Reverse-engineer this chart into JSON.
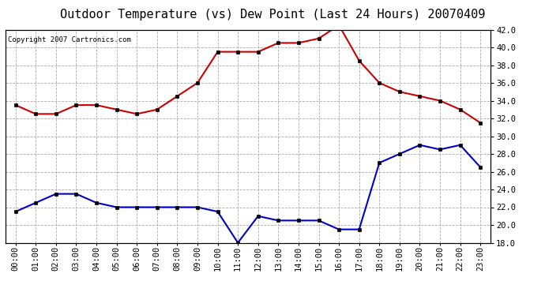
{
  "title": "Outdoor Temperature (vs) Dew Point (Last 24 Hours) 20070409",
  "copyright": "Copyright 2007 Cartronics.com",
  "hours": [
    "00:00",
    "01:00",
    "02:00",
    "03:00",
    "04:00",
    "05:00",
    "06:00",
    "07:00",
    "08:00",
    "09:00",
    "10:00",
    "11:00",
    "12:00",
    "13:00",
    "14:00",
    "15:00",
    "16:00",
    "17:00",
    "18:00",
    "19:00",
    "20:00",
    "21:00",
    "22:00",
    "23:00"
  ],
  "temp": [
    33.5,
    32.5,
    32.5,
    33.5,
    33.5,
    33.0,
    32.5,
    33.0,
    34.5,
    36.0,
    39.5,
    39.5,
    39.5,
    40.5,
    40.5,
    41.0,
    42.5,
    38.5,
    36.0,
    35.0,
    34.5,
    34.0,
    33.0,
    31.5
  ],
  "dew": [
    21.5,
    22.5,
    23.5,
    23.5,
    22.5,
    22.0,
    22.0,
    22.0,
    22.0,
    22.0,
    21.5,
    18.0,
    21.0,
    20.5,
    20.5,
    20.5,
    19.5,
    19.5,
    27.0,
    28.0,
    29.0,
    28.5,
    29.0,
    26.5
  ],
  "temp_color": "#cc0000",
  "dew_color": "#0000cc",
  "bg_color": "#ffffff",
  "grid_color": "#aaaaaa",
  "ylim": [
    18.0,
    42.0
  ],
  "yticks": [
    18.0,
    20.0,
    22.0,
    24.0,
    26.0,
    28.0,
    30.0,
    32.0,
    34.0,
    36.0,
    38.0,
    40.0,
    42.0
  ],
  "title_fontsize": 11,
  "copyright_fontsize": 6.5,
  "tick_label_fontsize": 7.5,
  "marker": "s",
  "marker_size": 3,
  "linewidth": 1.5
}
